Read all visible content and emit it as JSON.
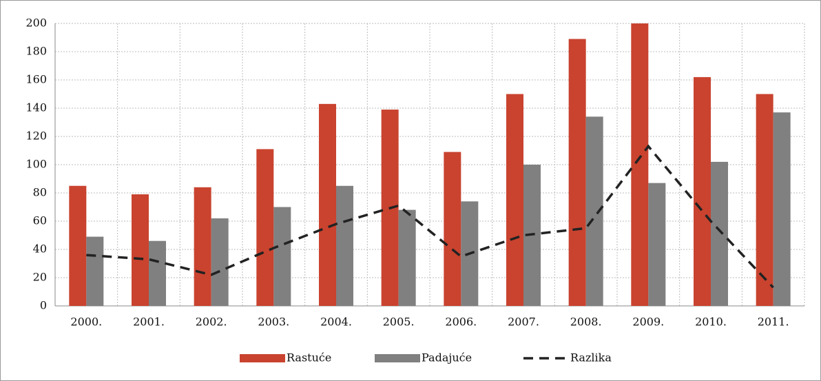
{
  "chart_data": {
    "type": "bar_line",
    "categories": [
      "2000.",
      "2001.",
      "2002.",
      "2003.",
      "2004.",
      "2005.",
      "2006.",
      "2007.",
      "2008.",
      "2009.",
      "2010.",
      "2011."
    ],
    "series": [
      {
        "name": "Rastuće",
        "color": "#c9432f",
        "type": "bar",
        "values": [
          85,
          79,
          84,
          111,
          143,
          139,
          109,
          150,
          189,
          200,
          162,
          150
        ]
      },
      {
        "name": "Padajuće",
        "color": "#808080",
        "type": "bar",
        "values": [
          49,
          46,
          62,
          70,
          85,
          68,
          74,
          100,
          134,
          87,
          102,
          137
        ]
      },
      {
        "name": "Razlika",
        "color": "#222222",
        "type": "line",
        "dashed": true,
        "values": [
          36,
          33,
          22,
          41,
          58,
          71,
          35,
          50,
          55,
          113,
          60,
          13
        ]
      }
    ],
    "ylim": [
      0,
      200
    ],
    "yticks": [
      0,
      20,
      40,
      60,
      80,
      100,
      120,
      140,
      160,
      180,
      200
    ],
    "grid": true,
    "legend": "bottom"
  }
}
